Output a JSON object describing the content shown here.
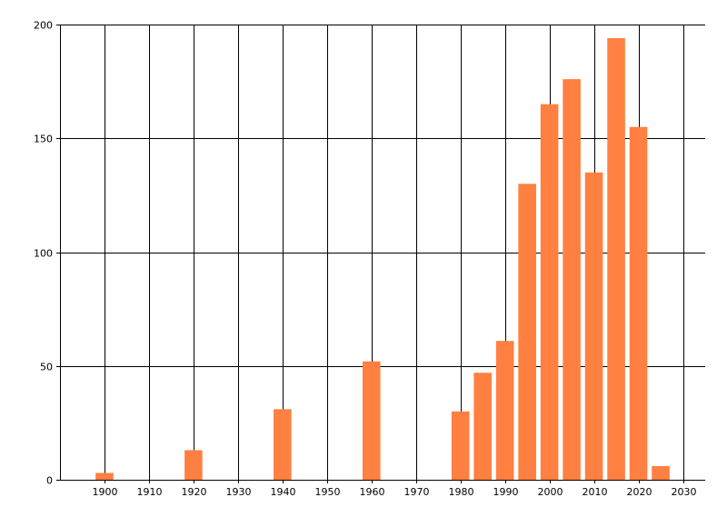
{
  "chart_data": {
    "type": "bar",
    "title": "",
    "xlabel": "",
    "ylabel": "",
    "x": [
      1900,
      1920,
      1940,
      1960,
      1980,
      1985,
      1990,
      1995,
      2000,
      2005,
      2010,
      2015,
      2020,
      2025
    ],
    "values": [
      3,
      13,
      31,
      52,
      30,
      47,
      61,
      130,
      165,
      176,
      135,
      194,
      155,
      6
    ],
    "xlim": [
      1890,
      2035
    ],
    "ylim": [
      0,
      200
    ],
    "x_ticks": [
      1900,
      1910,
      1920,
      1930,
      1940,
      1950,
      1960,
      1970,
      1980,
      1990,
      2000,
      2010,
      2020,
      2030
    ],
    "y_ticks": [
      0,
      50,
      100,
      150,
      200
    ],
    "x_tick_labels": [
      "1900",
      "1910",
      "1920",
      "1930",
      "1940",
      "1950",
      "1960",
      "1970",
      "1980",
      "1990",
      "2000",
      "2010",
      "2020",
      "2030"
    ],
    "y_tick_labels": [
      "0",
      "50",
      "100",
      "150",
      "200"
    ],
    "bar_width_years": 4,
    "grid": true,
    "legend": "none",
    "bar_color": "#ff8040",
    "grid_color": "#000000"
  }
}
